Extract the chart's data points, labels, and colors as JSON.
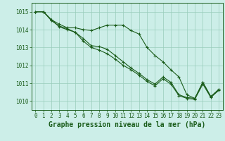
{
  "background_color": "#cceee8",
  "grid_color": "#99ccbb",
  "line_color": "#1a5c1a",
  "xlabel": "Graphe pression niveau de la mer (hPa)",
  "xlabel_fontsize": 7,
  "tick_fontsize": 5.5,
  "xlim": [
    -0.5,
    23.5
  ],
  "ylim": [
    1009.5,
    1015.5
  ],
  "yticks": [
    1010,
    1011,
    1012,
    1013,
    1014,
    1015
  ],
  "xticks": [
    0,
    1,
    2,
    3,
    4,
    5,
    6,
    7,
    8,
    9,
    10,
    11,
    12,
    13,
    14,
    15,
    16,
    17,
    18,
    19,
    20,
    21,
    22,
    23
  ],
  "series1_x": [
    0,
    1,
    2,
    3,
    4,
    5,
    6,
    7,
    8,
    9,
    10,
    11,
    12,
    13,
    14,
    15,
    16,
    17,
    18,
    19,
    20,
    21,
    22,
    23
  ],
  "series1_y": [
    1015.0,
    1015.0,
    1014.55,
    1014.3,
    1014.1,
    1014.1,
    1014.0,
    1013.95,
    1014.1,
    1014.25,
    1014.25,
    1014.25,
    1013.95,
    1013.75,
    1013.0,
    1012.55,
    1012.2,
    1011.75,
    1011.35,
    1010.35,
    1010.15,
    1011.05,
    1010.25,
    1010.65
  ],
  "series2_x": [
    0,
    1,
    2,
    3,
    4,
    5,
    6,
    7,
    8,
    9,
    10,
    11,
    12,
    13,
    14,
    15,
    16,
    17,
    18,
    19,
    20,
    21,
    22,
    23
  ],
  "series2_y": [
    1015.0,
    1015.0,
    1014.55,
    1014.15,
    1014.0,
    1013.85,
    1013.5,
    1013.1,
    1013.05,
    1012.9,
    1012.55,
    1012.2,
    1011.85,
    1011.55,
    1011.2,
    1010.95,
    1011.35,
    1011.05,
    1010.35,
    1010.2,
    1010.15,
    1011.05,
    1010.25,
    1010.65
  ],
  "series3_x": [
    0,
    1,
    2,
    3,
    4,
    5,
    6,
    7,
    8,
    9,
    10,
    11,
    12,
    13,
    14,
    15,
    16,
    17,
    18,
    19,
    20,
    21,
    22,
    23
  ],
  "series3_y": [
    1015.0,
    1015.0,
    1014.5,
    1014.2,
    1014.05,
    1013.85,
    1013.35,
    1013.0,
    1012.85,
    1012.65,
    1012.35,
    1012.0,
    1011.75,
    1011.45,
    1011.1,
    1010.85,
    1011.25,
    1010.95,
    1010.3,
    1010.15,
    1010.1,
    1010.95,
    1010.2,
    1010.6
  ]
}
